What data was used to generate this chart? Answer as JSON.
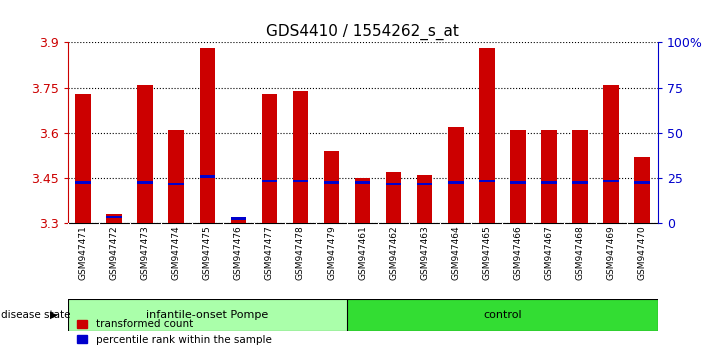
{
  "title": "GDS4410 / 1554262_s_at",
  "samples": [
    "GSM947471",
    "GSM947472",
    "GSM947473",
    "GSM947474",
    "GSM947475",
    "GSM947476",
    "GSM947477",
    "GSM947478",
    "GSM947479",
    "GSM947461",
    "GSM947462",
    "GSM947463",
    "GSM947464",
    "GSM947465",
    "GSM947466",
    "GSM947467",
    "GSM947468",
    "GSM947469",
    "GSM947470"
  ],
  "red_values": [
    3.73,
    3.33,
    3.76,
    3.61,
    3.88,
    3.31,
    3.73,
    3.74,
    3.54,
    3.45,
    3.47,
    3.46,
    3.62,
    3.88,
    3.61,
    3.61,
    3.61,
    3.76,
    3.52
  ],
  "blue_values": [
    3.435,
    3.32,
    3.435,
    3.43,
    3.455,
    3.315,
    3.44,
    3.44,
    3.435,
    3.435,
    3.43,
    3.43,
    3.435,
    3.44,
    3.435,
    3.435,
    3.435,
    3.44,
    3.435
  ],
  "group1_label": "infantile-onset Pompe",
  "group2_label": "control",
  "group1_count": 9,
  "group2_count": 10,
  "disease_state_label": "disease state",
  "legend_red": "transformed count",
  "legend_blue": "percentile rank within the sample",
  "ymin": 3.3,
  "ymax": 3.9,
  "yticks": [
    3.3,
    3.45,
    3.6,
    3.75,
    3.9
  ],
  "right_yticks": [
    0,
    25,
    50,
    75,
    100
  ],
  "right_yticklabels": [
    "0",
    "25",
    "50",
    "75",
    "100%"
  ],
  "bar_color": "#cc0000",
  "blue_color": "#0000cc",
  "group1_bg": "#aaffaa",
  "group2_bg": "#33dd33",
  "tick_label_color": "#cc0000",
  "right_tick_color": "#0000cc",
  "bar_width": 0.5,
  "title_fontsize": 11,
  "axis_bg": "#d8d8d8"
}
